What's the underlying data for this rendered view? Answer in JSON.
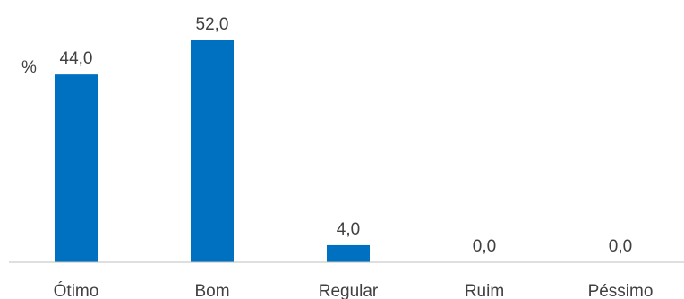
{
  "chart_data": {
    "type": "bar",
    "ylabel": "%",
    "categories": [
      "Ótimo",
      "Bom",
      "Regular",
      "Ruim",
      "Péssimo"
    ],
    "values": [
      44.0,
      52.0,
      4.0,
      0.0,
      0.0
    ],
    "value_labels": [
      "44,0",
      "52,0",
      "4,0",
      "0,0",
      "0,0"
    ],
    "ylim": [
      0,
      52
    ],
    "grid": false,
    "legend": "none",
    "bar_color": "#0070C0",
    "axis_color": "#BFBFBF",
    "text_color": "#404040"
  }
}
